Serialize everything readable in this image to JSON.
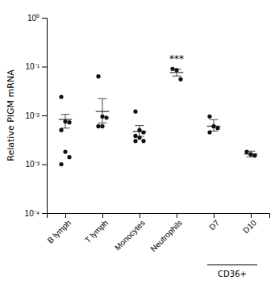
{
  "chart_data": {
    "type": "strip",
    "ylabel": "Relative PIGM mRNA",
    "categories": [
      "B lymph",
      "T lymph",
      "Monocytes",
      "Neutrophils",
      "D7",
      "D10"
    ],
    "points": [
      [
        0.024,
        0.0075,
        0.0072,
        0.005,
        0.0018,
        0.0014,
        0.001
      ],
      [
        0.063,
        0.0095,
        0.009,
        0.006,
        0.006
      ],
      [
        0.012,
        0.005,
        0.0045,
        0.0038,
        0.0035,
        0.003,
        0.003
      ],
      [
        0.09,
        0.085,
        0.055
      ],
      [
        0.0095,
        0.006,
        0.0055,
        0.0045
      ],
      [
        0.0018,
        0.0016,
        0.0015
      ]
    ],
    "mean": [
      0.0083,
      0.012,
      0.0047,
      0.076,
      0.006,
      0.00162
    ],
    "sem_upper": [
      0.0105,
      0.022,
      0.0062,
      0.088,
      0.0082,
      0.00185
    ],
    "sem_lower": [
      0.0055,
      0.007,
      0.0037,
      0.064,
      0.0048,
      0.00142
    ],
    "color": "#111111",
    "log": "y",
    "ylim": [
      0.0001,
      1
    ],
    "yticks": [
      {
        "value": 0.0001,
        "label": "10⁻⁴"
      },
      {
        "value": 0.001,
        "label": "10⁻³"
      },
      {
        "value": 0.01,
        "label": "10⁻²"
      },
      {
        "value": 0.1,
        "label": "10⁻¹"
      },
      {
        "value": 1,
        "label": "10⁰"
      }
    ],
    "grid": false,
    "annotations": [
      {
        "text": "***",
        "category": "Neutrophils"
      },
      {
        "text": "CD36+",
        "categories": [
          "D7",
          "D10"
        ]
      }
    ]
  }
}
